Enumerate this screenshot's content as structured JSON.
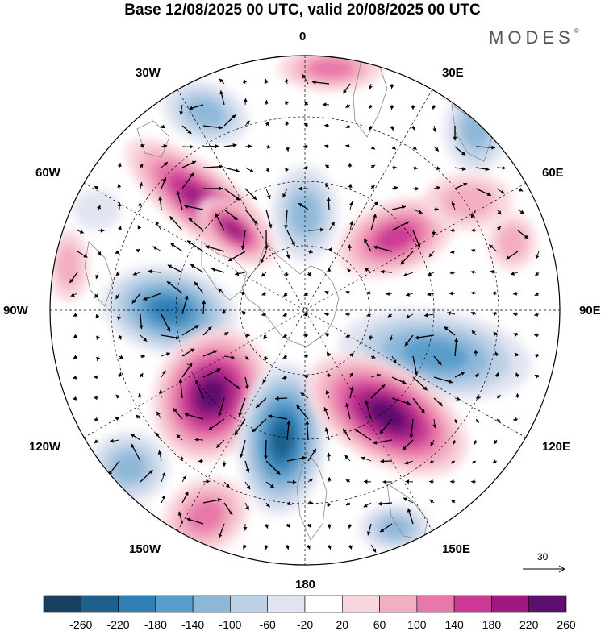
{
  "title": "Base 12/08/2025 00 UTC, valid 20/08/2025 00 UTC",
  "logo": "MODES",
  "logo_mark": "©",
  "longitude_labels": {
    "lon_0": "0",
    "lon_30e": "30E",
    "lon_60e": "60E",
    "lon_90e": "90E",
    "lon_120e": "120E",
    "lon_150e": "150E",
    "lon_180": "180",
    "lon_150w": "150W",
    "lon_120w": "120W",
    "lon_90w": "90W",
    "lon_60w": "60W",
    "lon_30w": "30W"
  },
  "vector_key": "30",
  "colorbar": {
    "ticks": [
      "-260",
      "-220",
      "-180",
      "-140",
      "-100",
      "-60",
      "-20",
      "20",
      "60",
      "100",
      "140",
      "180",
      "220",
      "260"
    ],
    "colors": [
      "#173f5f",
      "#1f5f8b",
      "#2f7fb4",
      "#5a9dcb",
      "#8eb8d9",
      "#bcd0e6",
      "#e2e5f1",
      "#ffffff",
      "#f9d6dc",
      "#f3aec1",
      "#e878a9",
      "#cc3a95",
      "#9e1a82",
      "#5c0f6e"
    ]
  },
  "colors": {
    "land_outline": "#888888",
    "graticule": "#000000",
    "vector": "#000000"
  }
}
